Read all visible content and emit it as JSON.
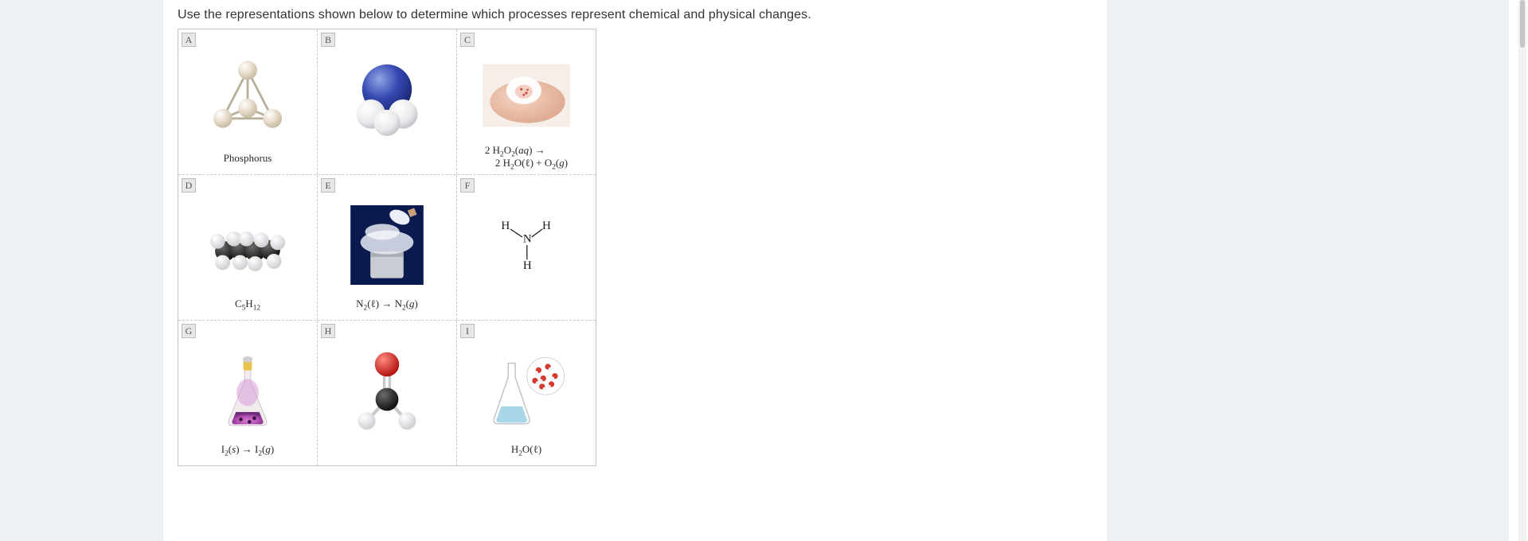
{
  "question_text": "Use the representations shown below to determine which processes represent chemical and physical changes.",
  "grid": {
    "rows": 3,
    "cols": 3,
    "cells": [
      {
        "label": "A",
        "caption_html": "Phosphorus",
        "visual": "phosphorus-tetra"
      },
      {
        "label": "B",
        "caption_html": "",
        "visual": "ammonia-3d"
      },
      {
        "label": "C",
        "caption_html": "2 H<sub>2</sub>O<sub>2</sub>(<i>aq</i>) →<br>&nbsp;&nbsp;&nbsp;&nbsp;2 H<sub>2</sub>O(ℓ) + O<sub>2</sub>(<i>g</i>)",
        "visual": "peroxide-finger"
      },
      {
        "label": "D",
        "caption_html": "C<sub>5</sub>H<sub>12</sub>",
        "visual": "pentane-spacefill"
      },
      {
        "label": "E",
        "caption_html": "N<sub>2</sub>(ℓ) → N<sub>2</sub>(<i>g</i>)",
        "visual": "ln2-pour"
      },
      {
        "label": "F",
        "caption_html": "",
        "visual": "nh3-lewis"
      },
      {
        "label": "G",
        "caption_html": "I<sub>2</sub>(<i>s</i>) → I<sub>2</sub>(<i>g</i>)",
        "visual": "iodine-sublimation"
      },
      {
        "label": "H",
        "caption_html": "",
        "visual": "formaldehyde-3d"
      },
      {
        "label": "I",
        "caption_html": "H<sub>2</sub>O(ℓ)",
        "visual": "water-flask"
      }
    ]
  },
  "colors": {
    "page_bg": "#eef1f3",
    "panel_bg": "#ffffff",
    "border": "#c6c6c6",
    "label_bg": "#e7e7e7",
    "text": "#333333"
  }
}
